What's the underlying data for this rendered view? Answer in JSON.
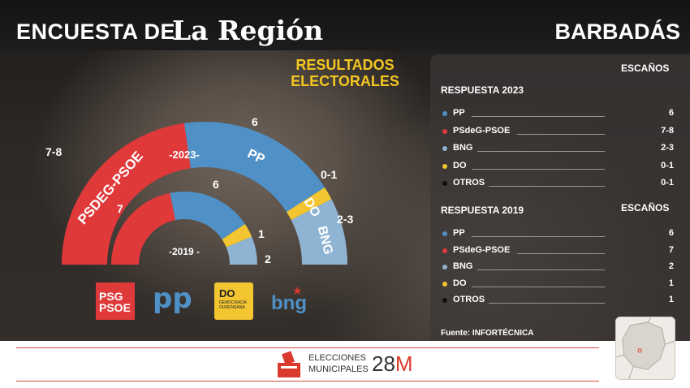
{
  "header": {
    "left_title": "ENCUESTA DE",
    "brand": "La Región",
    "municipality": "BARBADÁS"
  },
  "title": {
    "line1": "RESULTADOS",
    "line2": "ELECTORALES"
  },
  "colors": {
    "PP": "#4f91c6",
    "PSdeG-PSOE": "#e0393a",
    "BNG": "#8fb3d3",
    "DO": "#f2c531",
    "OTROS": "#111111"
  },
  "chart_data": [
    {
      "type": "pie",
      "label": "2023",
      "variant": "half-donut (parliament)",
      "categories": [
        "PSDEG-PSOE",
        "PP",
        "DO",
        "BNG"
      ],
      "seat_labels": [
        "7-8",
        "6",
        "0-1",
        "2-3"
      ],
      "values": [
        7.5,
        6,
        0.5,
        2.5
      ]
    },
    {
      "type": "pie",
      "label": "2019",
      "variant": "half-donut (parliament)",
      "categories": [
        "PSdeG-PSOE",
        "PP",
        "DO",
        "BNG"
      ],
      "seat_labels": [
        "7",
        "6",
        "1",
        "2"
      ],
      "values": [
        7,
        6,
        1,
        2
      ]
    }
  ],
  "panel": {
    "seats_header": "ESCAÑOS",
    "section_2023": "RESPUESTA 2023",
    "rows_2023": [
      {
        "party": "PP",
        "seats": "6",
        "color": "#4f91c6"
      },
      {
        "party": "PSdeG-PSOE",
        "seats": "7-8",
        "color": "#e0393a"
      },
      {
        "party": "BNG",
        "seats": "2-3",
        "color": "#8fb3d3"
      },
      {
        "party": "DO",
        "seats": "0-1",
        "color": "#f2c531"
      },
      {
        "party": "OTROS",
        "seats": "0-1",
        "color": "#111111"
      }
    ],
    "section_2019": "RESPUESTA 2019",
    "seats_header_2019": "ESCAÑOS",
    "rows_2019": [
      {
        "party": "PP",
        "seats": "6",
        "color": "#4f91c6"
      },
      {
        "party": "PSdeG-PSOE",
        "seats": "7",
        "color": "#e0393a"
      },
      {
        "party": "BNG",
        "seats": "2",
        "color": "#8fb3d3"
      },
      {
        "party": "DO",
        "seats": "1",
        "color": "#f2c531"
      },
      {
        "party": "OTROS",
        "seats": "1",
        "color": "#111111"
      }
    ],
    "source": "Fuente: INFORTÉCNICA"
  },
  "logos": {
    "psoe_top": "PSG",
    "psoe_bottom": "PSOE",
    "pp": "pp",
    "do_big": "DO",
    "do_small1": "DEMOCRACIA",
    "do_small2": "OURENSANA",
    "bng": "bng"
  },
  "footer": {
    "line1": "ELECCIONES",
    "line2": "MUNICIPALES",
    "big": "28",
    "big_suffix": "M"
  }
}
